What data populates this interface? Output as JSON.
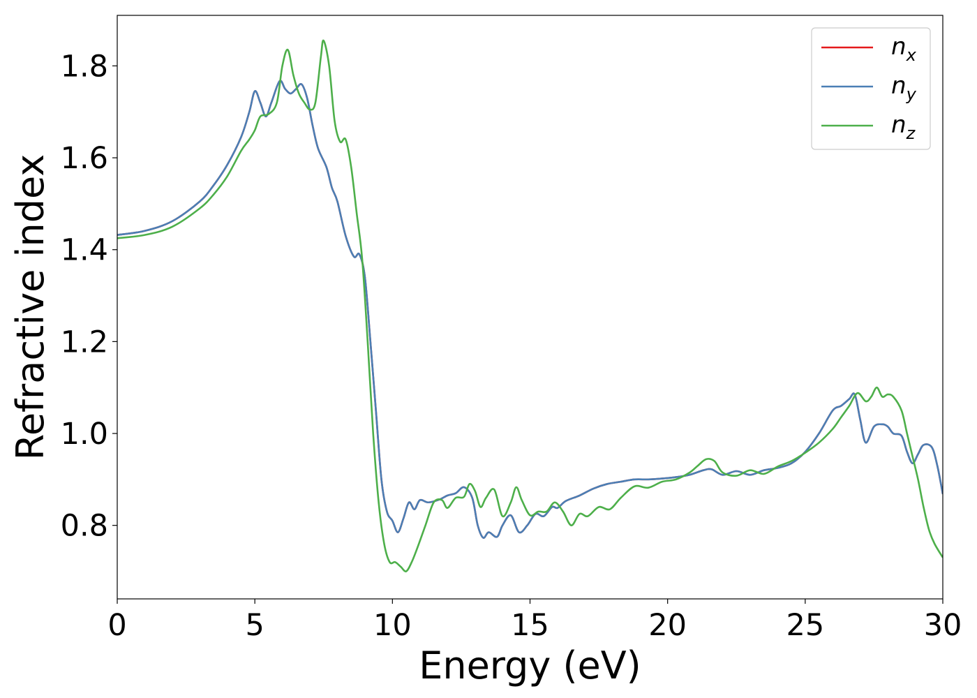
{
  "chart_data": {
    "type": "line",
    "xlabel": "Energy (eV)",
    "ylabel": "Refractive index",
    "xlim": [
      0,
      30
    ],
    "ylim": [
      0.64,
      1.91
    ],
    "xticks": [
      "0",
      "5",
      "10",
      "15",
      "20",
      "25",
      "30"
    ],
    "yticks": [
      "0.8",
      "1.0",
      "1.2",
      "1.4",
      "1.6",
      "1.8"
    ],
    "xtick_values": [
      0,
      5,
      10,
      15,
      20,
      25,
      30
    ],
    "ytick_values": [
      0.8,
      1.0,
      1.2,
      1.4,
      1.6,
      1.8
    ],
    "grid": false,
    "legend_position": "top-right",
    "series": [
      {
        "name": "n",
        "subscript": "x",
        "color": "#e41a1c",
        "x": [
          0,
          1,
          2,
          3,
          3.5,
          4,
          4.5,
          4.8,
          5.0,
          5.2,
          5.4,
          5.6,
          5.9,
          6.1,
          6.3,
          6.5,
          6.7,
          6.9,
          7.1,
          7.3,
          7.6,
          7.8,
          8.0,
          8.3,
          8.6,
          8.8,
          9.0,
          9.2,
          9.4,
          9.6,
          9.8,
          10.0,
          10.2,
          10.4,
          10.6,
          10.8,
          11.0,
          11.3,
          11.7,
          12.0,
          12.3,
          12.6,
          12.9,
          13.1,
          13.3,
          13.5,
          13.8,
          14.0,
          14.3,
          14.6,
          14.9,
          15.2,
          15.5,
          15.8,
          16.0,
          16.3,
          16.8,
          17.3,
          17.8,
          18.3,
          18.8,
          19.3,
          19.8,
          20.3,
          20.8,
          21.3,
          21.6,
          22.0,
          22.5,
          23.0,
          23.5,
          24.0,
          24.5,
          25.0,
          25.5,
          26.0,
          26.3,
          26.6,
          26.8,
          27.0,
          27.2,
          27.5,
          27.8,
          28.0,
          28.2,
          28.5,
          28.7,
          28.9,
          29.1,
          29.3,
          29.6,
          29.8,
          30.0
        ],
        "values": [
          1.432,
          1.441,
          1.462,
          1.505,
          1.54,
          1.585,
          1.645,
          1.7,
          1.745,
          1.72,
          1.69,
          1.72,
          1.767,
          1.75,
          1.74,
          1.75,
          1.76,
          1.73,
          1.67,
          1.62,
          1.58,
          1.535,
          1.505,
          1.43,
          1.385,
          1.39,
          1.34,
          1.2,
          1.05,
          0.9,
          0.83,
          0.81,
          0.785,
          0.815,
          0.85,
          0.835,
          0.855,
          0.85,
          0.856,
          0.865,
          0.87,
          0.883,
          0.86,
          0.8,
          0.773,
          0.785,
          0.775,
          0.8,
          0.822,
          0.785,
          0.8,
          0.825,
          0.82,
          0.84,
          0.838,
          0.853,
          0.865,
          0.88,
          0.89,
          0.895,
          0.9,
          0.9,
          0.902,
          0.905,
          0.91,
          0.92,
          0.922,
          0.91,
          0.918,
          0.91,
          0.92,
          0.925,
          0.935,
          0.96,
          1.0,
          1.05,
          1.06,
          1.075,
          1.085,
          1.03,
          0.98,
          1.015,
          1.02,
          1.015,
          1.0,
          0.995,
          0.96,
          0.935,
          0.955,
          0.975,
          0.97,
          0.93,
          0.868
        ]
      },
      {
        "name": "n",
        "subscript": "y",
        "color": "#4a7fb5",
        "x": [
          0,
          1,
          2,
          3,
          3.5,
          4,
          4.5,
          4.8,
          5.0,
          5.2,
          5.4,
          5.6,
          5.9,
          6.1,
          6.3,
          6.5,
          6.7,
          6.9,
          7.1,
          7.3,
          7.6,
          7.8,
          8.0,
          8.3,
          8.6,
          8.8,
          9.0,
          9.2,
          9.4,
          9.6,
          9.8,
          10.0,
          10.2,
          10.4,
          10.6,
          10.8,
          11.0,
          11.3,
          11.7,
          12.0,
          12.3,
          12.6,
          12.9,
          13.1,
          13.3,
          13.5,
          13.8,
          14.0,
          14.3,
          14.6,
          14.9,
          15.2,
          15.5,
          15.8,
          16.0,
          16.3,
          16.8,
          17.3,
          17.8,
          18.3,
          18.8,
          19.3,
          19.8,
          20.3,
          20.8,
          21.3,
          21.6,
          22.0,
          22.5,
          23.0,
          23.5,
          24.0,
          24.5,
          25.0,
          25.5,
          26.0,
          26.3,
          26.6,
          26.8,
          27.0,
          27.2,
          27.5,
          27.8,
          28.0,
          28.2,
          28.5,
          28.7,
          28.9,
          29.1,
          29.3,
          29.6,
          29.8,
          30.0
        ],
        "values": [
          1.432,
          1.441,
          1.462,
          1.505,
          1.54,
          1.585,
          1.645,
          1.7,
          1.745,
          1.72,
          1.69,
          1.72,
          1.767,
          1.75,
          1.74,
          1.75,
          1.76,
          1.73,
          1.67,
          1.62,
          1.58,
          1.535,
          1.505,
          1.43,
          1.385,
          1.39,
          1.34,
          1.2,
          1.05,
          0.9,
          0.83,
          0.81,
          0.785,
          0.815,
          0.85,
          0.835,
          0.855,
          0.85,
          0.856,
          0.865,
          0.87,
          0.883,
          0.86,
          0.8,
          0.773,
          0.785,
          0.775,
          0.8,
          0.822,
          0.785,
          0.8,
          0.825,
          0.82,
          0.84,
          0.838,
          0.853,
          0.865,
          0.88,
          0.89,
          0.895,
          0.9,
          0.9,
          0.902,
          0.905,
          0.91,
          0.92,
          0.922,
          0.91,
          0.918,
          0.91,
          0.92,
          0.925,
          0.935,
          0.96,
          1.0,
          1.05,
          1.06,
          1.075,
          1.085,
          1.03,
          0.98,
          1.015,
          1.02,
          1.015,
          1.0,
          0.995,
          0.96,
          0.935,
          0.955,
          0.975,
          0.97,
          0.93,
          0.868
        ]
      },
      {
        "name": "n",
        "subscript": "z",
        "color": "#4daf4a",
        "x": [
          0,
          1,
          2,
          3,
          3.5,
          4,
          4.5,
          4.8,
          5.0,
          5.2,
          5.5,
          5.8,
          6.0,
          6.2,
          6.4,
          6.6,
          6.8,
          7.0,
          7.2,
          7.4,
          7.5,
          7.7,
          7.9,
          8.1,
          8.3,
          8.5,
          8.7,
          8.9,
          9.1,
          9.3,
          9.5,
          9.7,
          9.9,
          10.1,
          10.3,
          10.5,
          10.7,
          10.9,
          11.2,
          11.5,
          11.8,
          12.0,
          12.3,
          12.6,
          12.8,
          13.0,
          13.2,
          13.4,
          13.7,
          14.0,
          14.3,
          14.5,
          14.7,
          15.0,
          15.3,
          15.6,
          15.9,
          16.2,
          16.5,
          16.8,
          17.1,
          17.5,
          17.9,
          18.3,
          18.8,
          19.3,
          19.8,
          20.3,
          20.8,
          21.1,
          21.4,
          21.7,
          22.0,
          22.5,
          23.0,
          23.5,
          24.0,
          24.5,
          25.0,
          25.5,
          26.0,
          26.3,
          26.6,
          26.9,
          27.2,
          27.4,
          27.6,
          27.8,
          28.0,
          28.2,
          28.5,
          28.7,
          28.9,
          29.1,
          29.3,
          29.5,
          29.7,
          30.0
        ],
        "values": [
          1.425,
          1.432,
          1.45,
          1.49,
          1.52,
          1.56,
          1.615,
          1.64,
          1.66,
          1.69,
          1.695,
          1.72,
          1.8,
          1.835,
          1.78,
          1.74,
          1.72,
          1.705,
          1.72,
          1.82,
          1.855,
          1.8,
          1.68,
          1.635,
          1.64,
          1.58,
          1.48,
          1.38,
          1.2,
          1.0,
          0.85,
          0.76,
          0.72,
          0.72,
          0.71,
          0.7,
          0.72,
          0.75,
          0.8,
          0.85,
          0.855,
          0.838,
          0.86,
          0.862,
          0.89,
          0.875,
          0.84,
          0.86,
          0.878,
          0.82,
          0.85,
          0.883,
          0.855,
          0.822,
          0.83,
          0.83,
          0.85,
          0.83,
          0.8,
          0.825,
          0.82,
          0.84,
          0.835,
          0.86,
          0.885,
          0.882,
          0.895,
          0.9,
          0.915,
          0.93,
          0.944,
          0.94,
          0.915,
          0.908,
          0.92,
          0.912,
          0.928,
          0.94,
          0.958,
          0.98,
          1.01,
          1.035,
          1.06,
          1.088,
          1.07,
          1.08,
          1.1,
          1.08,
          1.085,
          1.08,
          1.05,
          1.0,
          0.95,
          0.9,
          0.84,
          0.79,
          0.76,
          0.73
        ]
      }
    ]
  }
}
